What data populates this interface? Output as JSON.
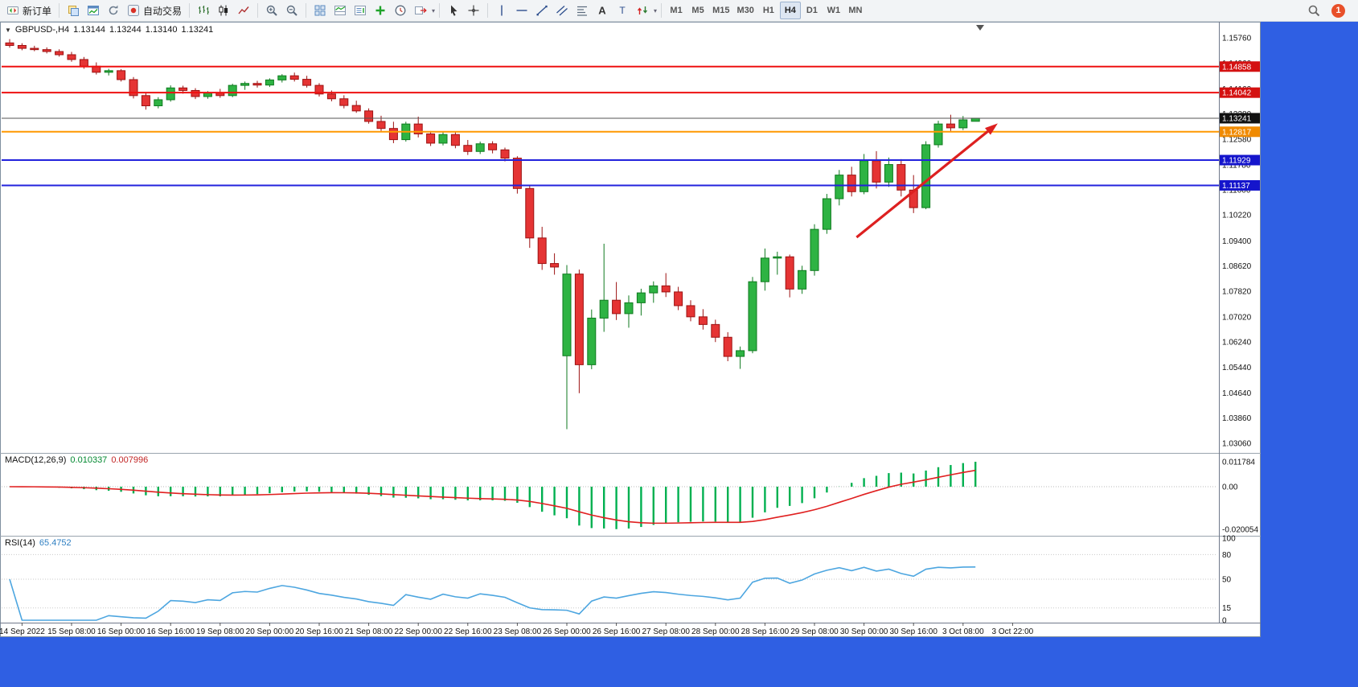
{
  "toolbar": {
    "new_order": "新订单",
    "auto_trading": "自动交易",
    "timeframes": [
      "M1",
      "M5",
      "M15",
      "M30",
      "H1",
      "H4",
      "D1",
      "W1",
      "MN"
    ],
    "active_timeframe": "H4",
    "notification_count": "1"
  },
  "chart": {
    "info": {
      "symbol_period": "GBPUSD-,H4",
      "open": "1.13144",
      "high": "1.13244",
      "low": "1.13140",
      "close": "1.13241"
    }
  },
  "chart_data": {
    "type": "candlestick",
    "symbol": "GBPUSD-",
    "timeframe": "H4",
    "ylim": [
      1.02909,
      1.16213
    ],
    "candles": [
      [
        1.156,
        1.1572,
        1.1545,
        1.1552
      ],
      [
        1.1552,
        1.1559,
        1.1537,
        1.1543
      ],
      [
        1.1543,
        1.1551,
        1.1534,
        1.1539
      ],
      [
        1.1539,
        1.1546,
        1.1527,
        1.1533
      ],
      [
        1.1533,
        1.154,
        1.1517,
        1.1523
      ],
      [
        1.1523,
        1.1532,
        1.1501,
        1.1508
      ],
      [
        1.1508,
        1.1516,
        1.1479,
        1.1487
      ],
      [
        1.1487,
        1.1499,
        1.1461,
        1.1468
      ],
      [
        1.1468,
        1.1479,
        1.1458,
        1.1473
      ],
      [
        1.1473,
        1.1478,
        1.1439,
        1.1445
      ],
      [
        1.1445,
        1.1453,
        1.1386,
        1.1395
      ],
      [
        1.1395,
        1.1406,
        1.1351,
        1.1363
      ],
      [
        1.1363,
        1.139,
        1.1355,
        1.1382
      ],
      [
        1.1382,
        1.1427,
        1.1376,
        1.1419
      ],
      [
        1.1419,
        1.1426,
        1.1401,
        1.1411
      ],
      [
        1.1411,
        1.1418,
        1.1384,
        1.1392
      ],
      [
        1.1392,
        1.1409,
        1.1385,
        1.1403
      ],
      [
        1.1403,
        1.1416,
        1.1388,
        1.1395
      ],
      [
        1.1395,
        1.1432,
        1.139,
        1.1427
      ],
      [
        1.1427,
        1.1439,
        1.1413,
        1.1433
      ],
      [
        1.1433,
        1.1441,
        1.142,
        1.1428
      ],
      [
        1.1428,
        1.1449,
        1.1422,
        1.1444
      ],
      [
        1.1444,
        1.1462,
        1.1436,
        1.1457
      ],
      [
        1.1457,
        1.1467,
        1.1439,
        1.1446
      ],
      [
        1.1446,
        1.1457,
        1.142,
        1.1427
      ],
      [
        1.1427,
        1.1434,
        1.1392,
        1.14
      ],
      [
        1.14,
        1.1411,
        1.1377,
        1.1385
      ],
      [
        1.1385,
        1.1396,
        1.1355,
        1.1364
      ],
      [
        1.1364,
        1.1379,
        1.1341,
        1.1347
      ],
      [
        1.1347,
        1.1355,
        1.1307,
        1.1314
      ],
      [
        1.1314,
        1.1332,
        1.1284,
        1.1292
      ],
      [
        1.1292,
        1.1313,
        1.1246,
        1.1257
      ],
      [
        1.1257,
        1.1313,
        1.1251,
        1.1306
      ],
      [
        1.1306,
        1.1329,
        1.1264,
        1.1275
      ],
      [
        1.1275,
        1.1284,
        1.1237,
        1.1246
      ],
      [
        1.1246,
        1.1281,
        1.1239,
        1.1273
      ],
      [
        1.1273,
        1.128,
        1.123,
        1.1239
      ],
      [
        1.1239,
        1.1256,
        1.1209,
        1.122
      ],
      [
        1.122,
        1.1251,
        1.1212,
        1.1244
      ],
      [
        1.1244,
        1.1252,
        1.1214,
        1.1225
      ],
      [
        1.1225,
        1.1232,
        1.1189,
        1.1199
      ],
      [
        1.1199,
        1.1205,
        1.1088,
        1.1104
      ],
      [
        1.1104,
        1.1114,
        1.0918,
        1.0949
      ],
      [
        1.0949,
        1.0984,
        1.0849,
        1.0869
      ],
      [
        1.0869,
        1.0901,
        1.0834,
        1.0858
      ],
      [
        1.058,
        1.0864,
        1.035,
        1.0836
      ],
      [
        1.0836,
        1.085,
        1.0463,
        1.0552
      ],
      [
        1.0552,
        1.0725,
        1.0538,
        1.0698
      ],
      [
        1.0698,
        1.0931,
        1.0655,
        1.0754
      ],
      [
        1.0754,
        1.0811,
        1.0692,
        1.0712
      ],
      [
        1.0712,
        1.0769,
        1.0668,
        1.0746
      ],
      [
        1.0746,
        1.079,
        1.0706,
        1.0777
      ],
      [
        1.0777,
        1.0813,
        1.0746,
        1.0799
      ],
      [
        1.0799,
        1.0839,
        1.0764,
        1.078
      ],
      [
        1.078,
        1.0796,
        1.0723,
        1.0737
      ],
      [
        1.0737,
        1.0754,
        1.0688,
        1.0702
      ],
      [
        1.0702,
        1.0726,
        1.0662,
        1.0678
      ],
      [
        1.0678,
        1.0693,
        1.0623,
        1.0638
      ],
      [
        1.0638,
        1.0654,
        1.0563,
        1.0578
      ],
      [
        1.0578,
        1.0609,
        1.0539,
        1.0596
      ],
      [
        1.0596,
        1.0827,
        1.0588,
        1.0812
      ],
      [
        1.0812,
        1.0916,
        1.0784,
        1.0886
      ],
      [
        1.0886,
        1.0906,
        1.0834,
        1.089
      ],
      [
        1.089,
        1.0897,
        1.0763,
        1.0789
      ],
      [
        1.0789,
        1.0862,
        1.0774,
        1.0847
      ],
      [
        1.0847,
        1.0992,
        1.0831,
        1.0976
      ],
      [
        1.0976,
        1.1087,
        1.0962,
        1.1072
      ],
      [
        1.1072,
        1.1162,
        1.1051,
        1.1146
      ],
      [
        1.1146,
        1.1172,
        1.1079,
        1.1094
      ],
      [
        1.1094,
        1.1212,
        1.1086,
        1.1191
      ],
      [
        1.1191,
        1.1221,
        1.1104,
        1.1124
      ],
      [
        1.1124,
        1.1201,
        1.1109,
        1.1179
      ],
      [
        1.1179,
        1.1196,
        1.1079,
        1.1099
      ],
      [
        1.1099,
        1.1146,
        1.1027,
        1.1044
      ],
      [
        1.1044,
        1.1252,
        1.1039,
        1.1241
      ],
      [
        1.1241,
        1.1316,
        1.1232,
        1.1306
      ],
      [
        1.1306,
        1.1335,
        1.1284,
        1.1294
      ],
      [
        1.1294,
        1.1331,
        1.1287,
        1.1319
      ],
      [
        1.13144,
        1.13244,
        1.1314,
        1.13241
      ]
    ],
    "price_axis_labels": [
      "1.15760",
      "1.14960",
      "1.14160",
      "1.13380",
      "1.12580",
      "1.11780",
      "1.11000",
      "1.10220",
      "1.09400",
      "1.08620",
      "1.07820",
      "1.07020",
      "1.06240",
      "1.05440",
      "1.04640",
      "1.03860",
      "1.03060"
    ],
    "time_labels": [
      "14 Sep 2022",
      "15 Sep 08:00",
      "16 Sep 00:00",
      "16 Sep 16:00",
      "19 Sep 08:00",
      "20 Sep 00:00",
      "20 Sep 16:00",
      "21 Sep 08:00",
      "22 Sep 00:00",
      "22 Sep 16:00",
      "23 Sep 08:00",
      "26 Sep 00:00",
      "26 Sep 16:00",
      "27 Sep 08:00",
      "28 Sep 00:00",
      "28 Sep 16:00",
      "29 Sep 08:00",
      "30 Sep 00:00",
      "30 Sep 16:00",
      "3 Oct 08:00",
      "3 Oct 22:00"
    ],
    "hlines": [
      {
        "price": 1.14858,
        "label": "1.14858",
        "color": "#ee1111",
        "badge_bg": "#d41111",
        "width": 2
      },
      {
        "price": 1.14042,
        "label": "1.14042",
        "color": "#ee1111",
        "badge_bg": "#d41111",
        "width": 2
      },
      {
        "price": 1.13241,
        "label": "1.13241",
        "color": "#555555",
        "badge_bg": "#111111",
        "width": 1
      },
      {
        "price": 1.12817,
        "label": "1.12817",
        "color": "#ff9800",
        "badge_bg": "#f08a00",
        "width": 2
      },
      {
        "price": 1.11929,
        "label": "1.11929",
        "color": "#2222dd",
        "badge_bg": "#1515cc",
        "width": 2
      },
      {
        "price": 1.11137,
        "label": "1.11137",
        "color": "#2222dd",
        "badge_bg": "#1515cc",
        "width": 2
      }
    ],
    "arrow": {
      "from_index": 68.4,
      "from_price": 1.0951,
      "to_index": 79.8,
      "to_price": 1.1308
    },
    "macd": {
      "label": "MACD(12,26,9)",
      "value_main": "0.010337",
      "value_signal": "0.007996",
      "fast": 12,
      "slow": 26,
      "signal_period": 9,
      "axis_labels": [
        "0.011784",
        "0.00",
        "-0.020054"
      ]
    },
    "rsi": {
      "label": "RSI(14)",
      "value": "65.4752",
      "period": 14,
      "axis_labels": [
        "100",
        "80",
        "50",
        "15",
        "0"
      ],
      "levels": [
        80,
        50,
        15
      ]
    }
  },
  "colors": {
    "bull": "#2eb343",
    "bull_border": "#0f7a1f",
    "bear": "#e53434",
    "bear_border": "#9c1212",
    "macd_hist": "#00b050",
    "macd_signal": "#e02020",
    "rsi_line": "#4da6e0",
    "arrow": "#dd2020"
  }
}
